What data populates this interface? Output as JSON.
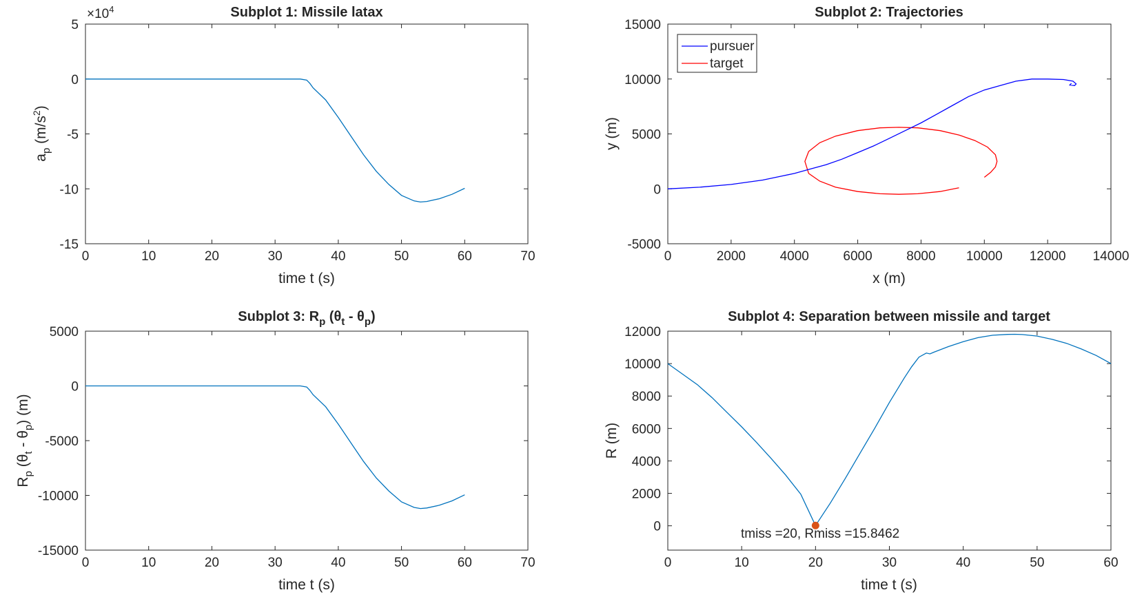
{
  "chart_data": [
    {
      "type": "line",
      "title": "Subplot 1: Missile latax",
      "xlabel": "time t (s)",
      "ylabel_base": "a",
      "ylabel_sub": "p",
      "ylabel_unit_open": " (m/s",
      "ylabel_unit_sup": "2",
      "ylabel_unit_close": ")",
      "exponent_base": "×10",
      "exponent_power": "4",
      "xlim": [
        0,
        70
      ],
      "ylim": [
        -15,
        5
      ],
      "xticks": [
        0,
        10,
        20,
        30,
        40,
        50,
        60,
        70
      ],
      "yticks": [
        5,
        0,
        -5,
        -10,
        -15
      ],
      "ytick_labels": [
        "5",
        "0",
        "-5",
        "-10",
        "-15"
      ],
      "series": [
        {
          "color": "#0072BD",
          "x": [
            0,
            5,
            10,
            15,
            20,
            25,
            30,
            34,
            35,
            35.5,
            36,
            38,
            40,
            42,
            44,
            46,
            48,
            50,
            52,
            53,
            54,
            56,
            58,
            60
          ],
          "y": [
            0,
            0,
            0,
            0,
            0,
            0,
            0,
            0,
            -0.1,
            -0.4,
            -0.8,
            -1.9,
            -3.5,
            -5.2,
            -6.9,
            -8.4,
            -9.6,
            -10.6,
            -11.1,
            -11.2,
            -11.15,
            -10.9,
            -10.5,
            -9.95
          ]
        }
      ]
    },
    {
      "type": "line",
      "title": "Subplot 2: Trajectories",
      "xlabel": "x (m)",
      "ylabel": "y (m)",
      "xlim": [
        0,
        14000
      ],
      "ylim": [
        -5000,
        15000
      ],
      "xticks": [
        0,
        2000,
        4000,
        6000,
        8000,
        10000,
        12000,
        14000
      ],
      "yticks": [
        -5000,
        0,
        5000,
        10000,
        15000
      ],
      "legend_position": "top-left",
      "series": [
        {
          "name": "pursuer",
          "color": "#0000FF",
          "x": [
            0,
            1000,
            2000,
            3000,
            4000,
            4500,
            5000,
            5500,
            6000,
            6500,
            7000,
            7500,
            8000,
            8500,
            9000,
            9500,
            10000,
            10500,
            11000,
            11500,
            12000,
            12500,
            12800,
            12900,
            12850,
            12700,
            12750
          ],
          "y": [
            0,
            150,
            400,
            800,
            1400,
            1800,
            2200,
            2700,
            3300,
            3900,
            4600,
            5300,
            6000,
            6800,
            7600,
            8400,
            9000,
            9400,
            9800,
            10000,
            10000,
            9950,
            9800,
            9550,
            9400,
            9450,
            9600
          ]
        },
        {
          "name": "target",
          "color": "#FF0000",
          "x": [
            9200,
            8600,
            7900,
            7300,
            6700,
            6000,
            5300,
            4800,
            4450,
            4330,
            4450,
            4800,
            5300,
            6000,
            6700,
            7300,
            7900,
            8600,
            9200,
            9700,
            10100,
            10350,
            10400,
            10350,
            10200,
            10000
          ],
          "y": [
            100,
            -250,
            -450,
            -500,
            -450,
            -250,
            150,
            700,
            1400,
            2500,
            3400,
            4200,
            4800,
            5300,
            5550,
            5600,
            5550,
            5300,
            4900,
            4400,
            3800,
            3100,
            2500,
            2000,
            1500,
            1050
          ]
        }
      ]
    },
    {
      "type": "line",
      "title_base": "Subplot 3: R",
      "title_sub": "p",
      "title_rest": " (θ",
      "title_sub2": "t",
      "title_rest2": " - θ",
      "title_sub3": "p",
      "title_end": ")",
      "xlabel": "time t (s)",
      "ylabel_base": "R",
      "ylabel_sub": "p",
      "ylabel_mid": " (θ",
      "ylabel_sub2": "t",
      "ylabel_mid2": " - θ",
      "ylabel_sub3": "p",
      "ylabel_end": ") (m)",
      "xlim": [
        0,
        70
      ],
      "ylim": [
        -15000,
        5000
      ],
      "xticks": [
        0,
        10,
        20,
        30,
        40,
        50,
        60,
        70
      ],
      "yticks": [
        5000,
        0,
        -5000,
        -10000,
        -15000
      ],
      "series": [
        {
          "color": "#0072BD",
          "x": [
            0,
            5,
            10,
            15,
            20,
            25,
            30,
            34,
            35,
            35.5,
            36,
            38,
            40,
            42,
            44,
            46,
            48,
            50,
            52,
            53,
            54,
            56,
            58,
            60
          ],
          "y": [
            0,
            0,
            0,
            0,
            0,
            0,
            0,
            0,
            -100,
            -400,
            -800,
            -1900,
            -3500,
            -5200,
            -6900,
            -8400,
            -9600,
            -10600,
            -11100,
            -11200,
            -11150,
            -10900,
            -10500,
            -9950
          ]
        }
      ]
    },
    {
      "type": "line",
      "title": "Subplot 4: Separation between missile and target",
      "xlabel": "time t (s)",
      "ylabel": "R (m)",
      "xlim": [
        0,
        60
      ],
      "ylim": [
        -1500,
        12000
      ],
      "xticks": [
        0,
        10,
        20,
        30,
        40,
        50,
        60
      ],
      "yticks": [
        12000,
        10000,
        8000,
        6000,
        4000,
        2000,
        0
      ],
      "annotation": "tmiss =20, Rmiss =15.8462",
      "marker": {
        "x": 20,
        "y": 15.8462,
        "color": "#D95319"
      },
      "series": [
        {
          "color": "#0072BD",
          "x": [
            0,
            2,
            4,
            6,
            8,
            10,
            12,
            14,
            16,
            18,
            20,
            22,
            24,
            26,
            28,
            30,
            32,
            33,
            34,
            35,
            35.5,
            36,
            38,
            40,
            42,
            44,
            46,
            47,
            48,
            50,
            52,
            54,
            56,
            58,
            60
          ],
          "y": [
            10000,
            9350,
            8700,
            7900,
            7000,
            6100,
            5150,
            4150,
            3100,
            1950,
            15.8462,
            1400,
            2900,
            4450,
            6000,
            7600,
            9100,
            9800,
            10400,
            10650,
            10600,
            10700,
            11050,
            11350,
            11600,
            11750,
            11800,
            11810,
            11790,
            11700,
            11500,
            11250,
            10900,
            10500,
            10000
          ]
        }
      ]
    }
  ]
}
